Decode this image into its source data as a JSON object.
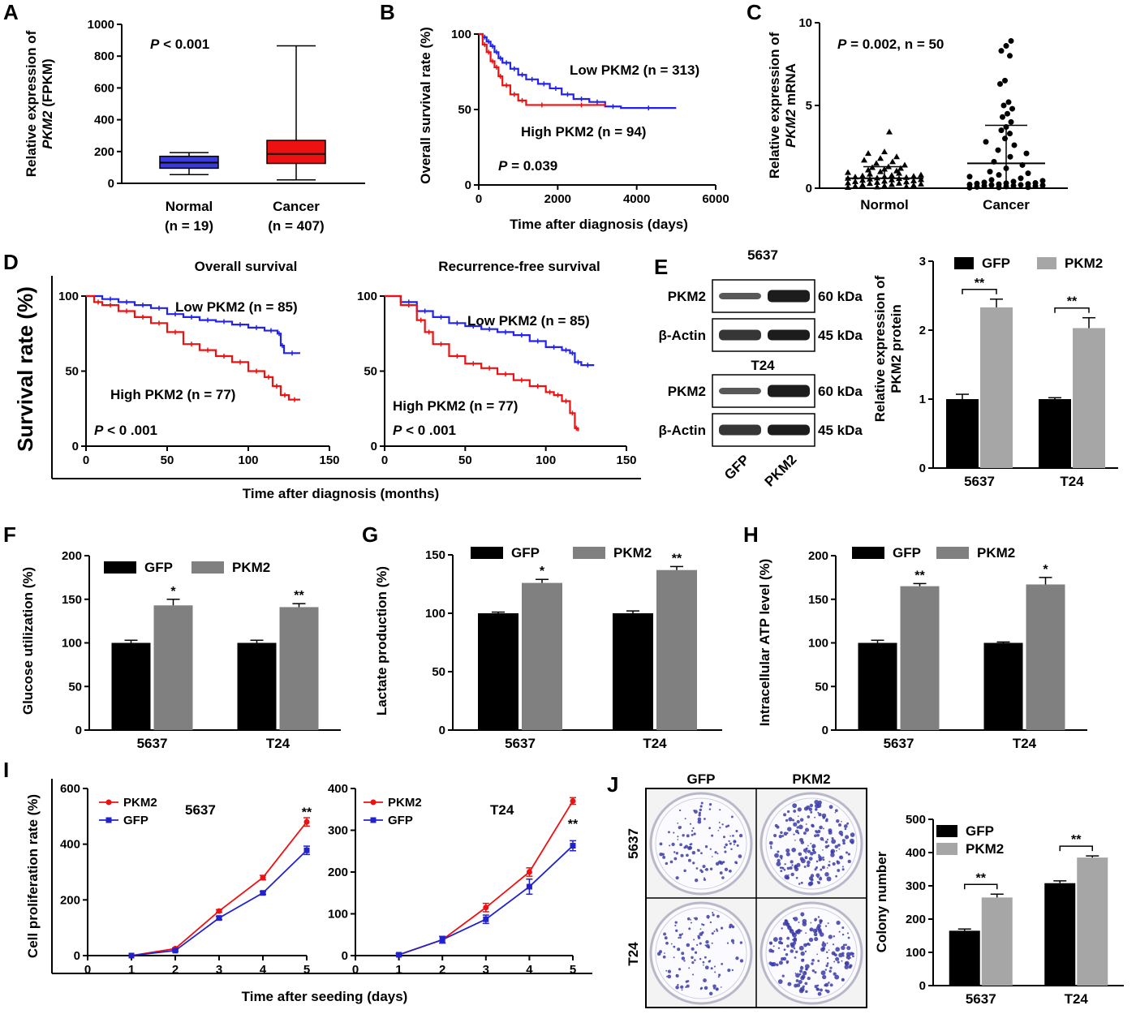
{
  "panels": {
    "A": "A",
    "B": "B",
    "C": "C",
    "D": "D",
    "E": "E",
    "F": "F",
    "G": "G",
    "H": "H",
    "I": "I",
    "J": "J"
  },
  "chart_data": [
    {
      "id": "A",
      "type": "box",
      "ylabel_line1": "Relative expression of",
      "ylabel_gene": "PKM2",
      "ylabel_unit": " (FPKM)",
      "ylim": [
        0,
        1000
      ],
      "yticks": [
        0,
        200,
        400,
        600,
        800,
        1000
      ],
      "p_text": "P < 0.001",
      "groups": [
        {
          "label": "Normal",
          "n_label": "(n = 19)",
          "min": 55,
          "q1": 95,
          "median": 130,
          "q3": 170,
          "max": 193,
          "color": "#3b3bdb"
        },
        {
          "label": "Cancer",
          "n_label": "(n = 407)",
          "min": 22,
          "q1": 125,
          "median": 185,
          "q3": 270,
          "max": 865,
          "color": "#ee1111"
        }
      ]
    },
    {
      "id": "B",
      "type": "line",
      "ylabel": "Overall survival rate (%)",
      "xlabel": "Time after diagnosis (days)",
      "xlim": [
        0,
        6000
      ],
      "ylim": [
        0,
        100
      ],
      "xticks": [
        0,
        2000,
        4000,
        6000
      ],
      "yticks": [
        0,
        50,
        100
      ],
      "p_text": "P = 0.039",
      "series": [
        {
          "name": "Low PKM2 (n = 313)",
          "color": "#2222ee",
          "x": [
            0,
            100,
            200,
            300,
            400,
            500,
            600,
            800,
            1000,
            1200,
            1500,
            1800,
            2100,
            2400,
            2800,
            3200,
            3600,
            5000
          ],
          "y": [
            100,
            98,
            95,
            92,
            88,
            84,
            81,
            77,
            73,
            70,
            67,
            64,
            60,
            57,
            55,
            52,
            51,
            51
          ]
        },
        {
          "name": "High PKM2 (n = 94)",
          "color": "#ee1111",
          "x": [
            0,
            100,
            200,
            300,
            400,
            500,
            600,
            800,
            1000,
            1200,
            2000,
            3200
          ],
          "y": [
            100,
            93,
            88,
            82,
            78,
            72,
            66,
            60,
            56,
            53,
            53,
            54
          ]
        }
      ]
    },
    {
      "id": "C",
      "type": "scatter",
      "ylabel_line1": "Relative expression of",
      "ylabel_gene": "PKM2",
      "ylabel_unit": " mRNA",
      "ylim": [
        0,
        10
      ],
      "yticks": [
        0,
        5,
        10
      ],
      "p_text": "P = 0.002, n = 50",
      "categories": [
        "Normol",
        "Cancer"
      ],
      "groups": [
        {
          "label": "Normol",
          "marker": "triangle",
          "mean": 0.6,
          "sd_low": 0.6,
          "sd_high": 1.3,
          "values": [
            0.05,
            0.08,
            0.1,
            0.12,
            0.15,
            0.18,
            0.2,
            0.22,
            0.25,
            0.28,
            0.3,
            0.32,
            0.35,
            0.38,
            0.4,
            0.42,
            0.45,
            0.48,
            0.5,
            0.52,
            0.55,
            0.58,
            0.6,
            0.62,
            0.65,
            0.68,
            0.7,
            0.72,
            0.75,
            0.78,
            0.8,
            0.85,
            0.9,
            0.95,
            1.0,
            1.05,
            1.1,
            1.15,
            1.2,
            1.25,
            1.3,
            1.4,
            1.5,
            1.6,
            1.7,
            1.8,
            1.9,
            2.1,
            2.2,
            3.4
          ]
        },
        {
          "label": "Cancer",
          "marker": "circle",
          "mean": 1.5,
          "sd_low": 0.05,
          "sd_high": 3.8,
          "values": [
            0.03,
            0.05,
            0.06,
            0.08,
            0.1,
            0.12,
            0.14,
            0.15,
            0.17,
            0.19,
            0.2,
            0.22,
            0.24,
            0.26,
            0.28,
            0.3,
            0.32,
            0.35,
            0.4,
            0.45,
            0.5,
            0.6,
            0.7,
            0.8,
            0.9,
            1.0,
            1.2,
            1.4,
            1.6,
            1.9,
            2.1,
            2.3,
            2.6,
            2.8,
            3.0,
            3.3,
            3.5,
            3.7,
            4.0,
            4.3,
            4.5,
            4.8,
            5.0,
            5.2,
            6.3,
            6.5,
            8.0,
            8.3,
            8.6,
            8.9
          ]
        }
      ]
    },
    {
      "id": "D1",
      "type": "line",
      "title": "Overall survival",
      "ylabel": "Survival rate (%)",
      "xlabel": "Time after diagnosis (months)",
      "xlim": [
        0,
        150
      ],
      "ylim": [
        0,
        100
      ],
      "xticks": [
        0,
        50,
        100,
        150
      ],
      "yticks": [
        0,
        50,
        100
      ],
      "p_text": "P < 0 .001",
      "series": [
        {
          "name": "Low PKM2 (n =  85)",
          "color": "#2222ee",
          "x": [
            0,
            10,
            20,
            30,
            40,
            50,
            60,
            70,
            80,
            90,
            100,
            110,
            118,
            120,
            122,
            132
          ],
          "y": [
            100,
            98,
            96,
            94,
            92,
            88,
            86,
            84,
            83,
            81,
            79,
            77,
            75,
            67,
            62,
            62
          ]
        },
        {
          "name": "High PKM2 (n = 77)",
          "color": "#ee1111",
          "x": [
            0,
            5,
            10,
            20,
            30,
            40,
            50,
            60,
            70,
            80,
            90,
            100,
            110,
            115,
            120,
            125,
            132
          ],
          "y": [
            100,
            96,
            94,
            90,
            86,
            82,
            76,
            68,
            64,
            60,
            56,
            50,
            46,
            40,
            34,
            31,
            31
          ]
        }
      ]
    },
    {
      "id": "D2",
      "type": "line",
      "title": "Recurrence-free survival",
      "xlim": [
        0,
        150
      ],
      "ylim": [
        0,
        100
      ],
      "xticks": [
        0,
        50,
        100,
        150
      ],
      "yticks": [
        0,
        50,
        100
      ],
      "p_text": "P < 0 .001",
      "series": [
        {
          "name": "Low PKM2 (n =  85)",
          "color": "#2222ee",
          "x": [
            0,
            10,
            20,
            30,
            40,
            50,
            60,
            70,
            80,
            90,
            100,
            110,
            115,
            118,
            122,
            130
          ],
          "y": [
            100,
            96,
            90,
            86,
            82,
            80,
            78,
            76,
            74,
            70,
            66,
            64,
            62,
            56,
            54,
            54
          ]
        },
        {
          "name": "High PKM2 (n = 77)",
          "color": "#ee1111",
          "x": [
            0,
            10,
            20,
            25,
            30,
            40,
            50,
            60,
            70,
            80,
            90,
            100,
            105,
            110,
            115,
            118,
            120
          ],
          "y": [
            100,
            94,
            84,
            76,
            68,
            60,
            55,
            52,
            48,
            44,
            40,
            36,
            34,
            30,
            22,
            12,
            10
          ]
        }
      ]
    },
    {
      "id": "E",
      "type": "bar",
      "ylabel_line1": "Relative expression of",
      "ylabel_line2": "PKM2 protein",
      "ylim": [
        0,
        3
      ],
      "yticks": [
        0,
        1,
        2,
        3
      ],
      "categories": [
        "5637",
        "T24"
      ],
      "series": [
        {
          "name": "GFP",
          "color": "#000000",
          "values": [
            1.0,
            1.0
          ],
          "errors": [
            0.07,
            0.02
          ]
        },
        {
          "name": "PKM2",
          "color": "#a6a6a6",
          "values": [
            2.33,
            2.03
          ],
          "errors": [
            0.12,
            0.15
          ]
        }
      ],
      "significance": [
        "**",
        "**"
      ],
      "blot": {
        "groups": [
          "5637",
          "T24"
        ],
        "rows": [
          {
            "name": "PKM2",
            "kda": "60 kDa",
            "weak": true
          },
          {
            "name": "β-Actin",
            "kda": "45 kDa",
            "weak": false
          }
        ],
        "lanes": [
          "GFP",
          "PKM2"
        ]
      }
    },
    {
      "id": "F",
      "type": "bar",
      "ylabel": "Glucose utilization (%)",
      "ylim": [
        0,
        200
      ],
      "yticks": [
        0,
        50,
        100,
        150,
        200
      ],
      "categories": [
        "5637",
        "T24"
      ],
      "series": [
        {
          "name": "GFP",
          "color": "#000000",
          "values": [
            100,
            100
          ],
          "errors": [
            3,
            3
          ]
        },
        {
          "name": "PKM2",
          "color": "#808080",
          "values": [
            143,
            141
          ],
          "errors": [
            7,
            4
          ]
        }
      ],
      "significance": [
        "*",
        "**"
      ]
    },
    {
      "id": "G",
      "type": "bar",
      "ylabel": "Lactate production (%)",
      "ylim": [
        0,
        150
      ],
      "yticks": [
        0,
        50,
        100,
        150
      ],
      "categories": [
        "5637",
        "T24"
      ],
      "series": [
        {
          "name": "GFP",
          "color": "#000000",
          "values": [
            100,
            100
          ],
          "errors": [
            1,
            2
          ]
        },
        {
          "name": "PKM2",
          "color": "#808080",
          "values": [
            126,
            137
          ],
          "errors": [
            3,
            3
          ]
        }
      ],
      "significance": [
        "*",
        "**"
      ]
    },
    {
      "id": "H",
      "type": "bar",
      "ylabel": "Intracellular ATP level (%)",
      "ylim": [
        0,
        200
      ],
      "yticks": [
        0,
        50,
        100,
        150,
        200
      ],
      "categories": [
        "5637",
        "T24"
      ],
      "series": [
        {
          "name": "GFP",
          "color": "#000000",
          "values": [
            100,
            100
          ],
          "errors": [
            3,
            1
          ]
        },
        {
          "name": "PKM2",
          "color": "#808080",
          "values": [
            165,
            167
          ],
          "errors": [
            3,
            8
          ]
        }
      ],
      "significance": [
        "**",
        "*"
      ]
    },
    {
      "id": "I1",
      "type": "line",
      "title": "5637",
      "ylabel": "Cell proliferation rate (%)",
      "xlabel": "Time after seeding (days)",
      "xlim": [
        0,
        5
      ],
      "ylim": [
        0,
        600
      ],
      "xticks": [
        0,
        1,
        2,
        3,
        4,
        5
      ],
      "yticks": [
        0,
        200,
        400,
        600
      ],
      "significance": "**",
      "series": [
        {
          "name": "PKM2",
          "color": "#ee1111",
          "marker": "circle",
          "x": [
            1,
            2,
            3,
            4,
            5
          ],
          "y": [
            0,
            25,
            160,
            280,
            480
          ],
          "errors": [
            0,
            3,
            5,
            8,
            15
          ]
        },
        {
          "name": "GFP",
          "color": "#2222cc",
          "marker": "square",
          "x": [
            1,
            2,
            3,
            4,
            5
          ],
          "y": [
            0,
            18,
            135,
            225,
            378
          ],
          "errors": [
            0,
            3,
            6,
            5,
            15
          ]
        }
      ]
    },
    {
      "id": "I2",
      "type": "line",
      "title": "T24",
      "xlim": [
        0,
        5
      ],
      "ylim": [
        0,
        400
      ],
      "xticks": [
        0,
        1,
        2,
        3,
        4,
        5
      ],
      "yticks": [
        0,
        100,
        200,
        300,
        400
      ],
      "significance": "**",
      "series": [
        {
          "name": "PKM2",
          "color": "#ee1111",
          "marker": "circle",
          "x": [
            1,
            2,
            3,
            4,
            5
          ],
          "y": [
            2,
            38,
            115,
            200,
            370
          ],
          "errors": [
            3,
            8,
            10,
            10,
            8
          ]
        },
        {
          "name": "GFP",
          "color": "#2222cc",
          "marker": "square",
          "x": [
            1,
            2,
            3,
            4,
            5
          ],
          "y": [
            2,
            38,
            87,
            165,
            263
          ],
          "errors": [
            3,
            8,
            10,
            18,
            12
          ]
        }
      ]
    },
    {
      "id": "J",
      "type": "bar",
      "ylabel": "Colony number",
      "ylim": [
        0,
        500
      ],
      "yticks": [
        0,
        100,
        200,
        300,
        400,
        500
      ],
      "categories": [
        "5637",
        "T24"
      ],
      "series": [
        {
          "name": "GFP",
          "color": "#000000",
          "values": [
            165,
            308
          ],
          "errors": [
            5,
            7
          ]
        },
        {
          "name": "PKM2",
          "color": "#a6a6a6",
          "values": [
            265,
            385
          ],
          "errors": [
            10,
            5
          ]
        }
      ],
      "significance": [
        "**",
        "**"
      ],
      "plates": {
        "columns": [
          "GFP",
          "PKM2"
        ],
        "rows": [
          "5637",
          "T24"
        ]
      }
    }
  ]
}
